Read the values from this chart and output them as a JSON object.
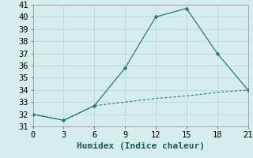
{
  "xlabel": "Humidex (Indice chaleur)",
  "line1_x": [
    0,
    3,
    6,
    9,
    12,
    15,
    18,
    21
  ],
  "line1_y": [
    32.0,
    31.5,
    32.7,
    35.8,
    40.0,
    40.7,
    37.0,
    34.0
  ],
  "line2_x": [
    0,
    3,
    6,
    9,
    12,
    15,
    18,
    21
  ],
  "line2_y": [
    32.0,
    31.5,
    32.7,
    33.0,
    33.3,
    33.5,
    33.8,
    34.0
  ],
  "line_color": "#2a7a6e",
  "bg_color": "#d6eeeb",
  "grid_color": "#b8d8d4",
  "xlim": [
    0,
    21
  ],
  "ylim": [
    31,
    41
  ],
  "xticks": [
    0,
    3,
    6,
    9,
    12,
    15,
    18,
    21
  ],
  "yticks": [
    31,
    32,
    33,
    34,
    35,
    36,
    37,
    38,
    39,
    40,
    41
  ],
  "xlabel_fontsize": 8,
  "tick_fontsize": 7.5
}
